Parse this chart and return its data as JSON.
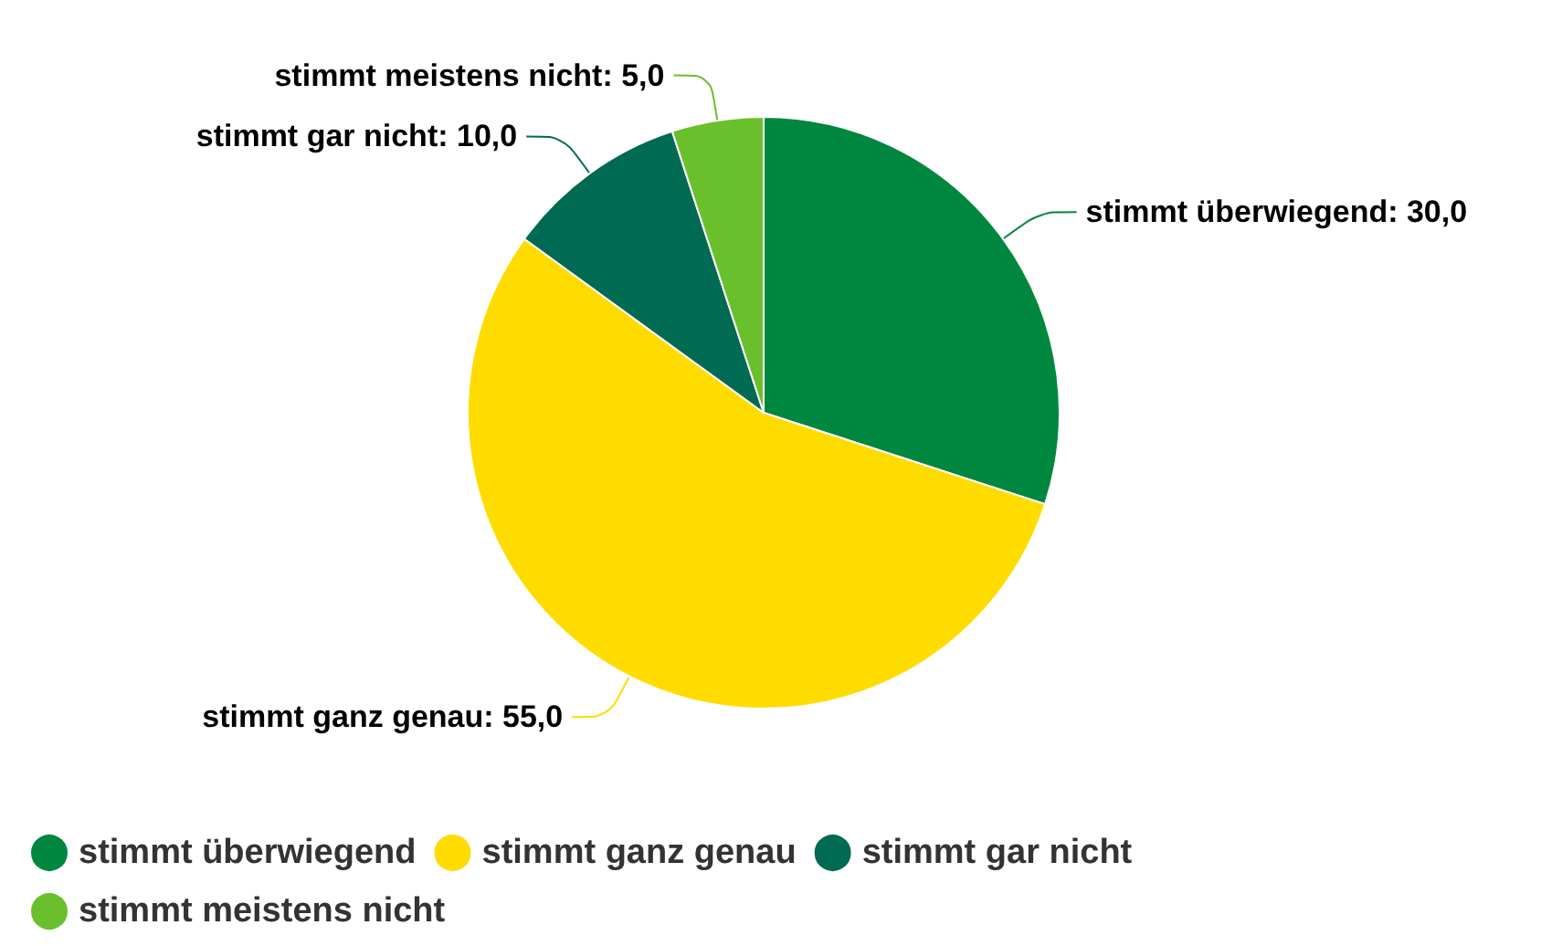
{
  "chart_data": {
    "type": "pie",
    "categories": [
      "stimmt überwiegend",
      "stimmt ganz genau",
      "stimmt gar nicht",
      "stimmt meistens nicht"
    ],
    "values": [
      30,
      55,
      10,
      5
    ],
    "value_labels": [
      "stimmt überwiegend: 30,0",
      "stimmt ganz genau: 55,0",
      "stimmt gar nicht: 10,0",
      "stimmt meistens nicht: 5,0"
    ],
    "colors": [
      "#00873f",
      "#ffdc00",
      "#006a52",
      "#6abf2d"
    ],
    "legend": "bottom"
  }
}
